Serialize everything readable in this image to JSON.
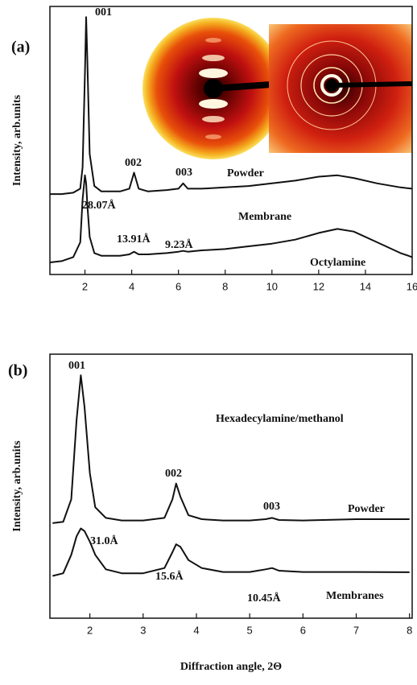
{
  "chart_data": [
    {
      "type": "line",
      "panel_label": "(a)",
      "ylabel": "Intensity, arb.units",
      "x": [
        0.5,
        1,
        1.5,
        1.8,
        1.9,
        2.0,
        2.05,
        2.1,
        2.2,
        2.4,
        2.7,
        3,
        3.5,
        3.9,
        4.1,
        4.3,
        4.7,
        5.5,
        6.0,
        6.2,
        6.4,
        7,
        8,
        9,
        10,
        11,
        12,
        12.8,
        13.5,
        14.5,
        15.5,
        16
      ],
      "series": [
        {
          "name": "Powder",
          "color": "#111111",
          "values": [
            30,
            30,
            30.5,
            32,
            40,
            75,
            96,
            80,
            45,
            33,
            31,
            31,
            31,
            32,
            38,
            32,
            31,
            31.5,
            32,
            34,
            32,
            32,
            32.5,
            33,
            34,
            35,
            36.5,
            37,
            36,
            34,
            32.5,
            32
          ]
        },
        {
          "name": "Membrane",
          "color": "#111111",
          "values": [
            4.5,
            5,
            6.5,
            12,
            28,
            37,
            34,
            26,
            14,
            8,
            7,
            7,
            7,
            7.5,
            8.5,
            7.5,
            7.5,
            8,
            8.5,
            8.8,
            8.5,
            9,
            9.5,
            10.5,
            11.5,
            13,
            15.5,
            17,
            16,
            12,
            8,
            6.5
          ]
        }
      ],
      "annotations": [
        "001",
        "002",
        "003",
        "28.07Å",
        "13.91Å",
        "9.23Å",
        "Octylamine"
      ],
      "xlim": [
        0.5,
        16
      ],
      "xticks": [
        2,
        4,
        6,
        8,
        10,
        12,
        14,
        16
      ],
      "ylim": [
        0,
        100
      ]
    },
    {
      "type": "line",
      "panel_label": "(b)",
      "ylabel": "Intensity, arb.units",
      "xlabel": "Diffraction angle, 2Θ",
      "x": [
        1.3,
        1.5,
        1.65,
        1.75,
        1.83,
        1.9,
        2.0,
        2.1,
        2.3,
        2.6,
        3.0,
        3.4,
        3.55,
        3.62,
        3.7,
        3.85,
        4.1,
        4.5,
        5.0,
        5.3,
        5.42,
        5.55,
        6.0,
        7.0,
        8.0
      ],
      "series": [
        {
          "name": "Powder",
          "color": "#111111",
          "values": [
            36,
            36.5,
            45,
            75,
            92,
            80,
            55,
            42,
            38,
            37,
            37,
            38,
            45,
            51,
            46,
            39,
            37.5,
            37,
            37,
            37.5,
            38,
            37.2,
            37,
            37.5,
            37.5
          ]
        },
        {
          "name": "Membranes",
          "color": "#111111",
          "values": [
            16,
            17,
            24,
            31,
            34,
            33,
            29,
            24,
            18.5,
            17,
            17,
            19,
            25,
            28,
            27,
            22,
            19,
            17.5,
            17.5,
            18.5,
            19,
            18,
            17.5,
            17.5,
            17.4
          ]
        }
      ],
      "annotations": [
        "001",
        "Hexadecylamine/methanol",
        "002",
        "003",
        "31.0Å",
        "15.6Å",
        "10.45Å"
      ],
      "xlim": [
        1.25,
        8.05
      ],
      "xticks": [
        2,
        3,
        4,
        5,
        6,
        7,
        8
      ],
      "ylim": [
        0,
        100
      ]
    }
  ]
}
